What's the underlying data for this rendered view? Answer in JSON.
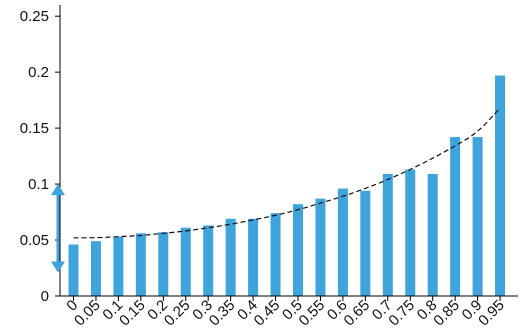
{
  "chart_data": {
    "type": "bar",
    "title": "",
    "xlabel": "",
    "ylabel": "",
    "categories": [
      "0",
      "0.05",
      "0.1",
      "0.15",
      "0.2",
      "0.25",
      "0.3",
      "0.35",
      "0.4",
      "0.45",
      "0.5",
      "0.55",
      "0.6",
      "0.65",
      "0.7",
      "0.75",
      "0.8",
      "0.85",
      "0.9",
      "0.95"
    ],
    "values": [
      0.046,
      0.049,
      0.053,
      0.056,
      0.057,
      0.061,
      0.063,
      0.069,
      0.069,
      0.074,
      0.082,
      0.087,
      0.096,
      0.094,
      0.109,
      0.113,
      0.109,
      0.142,
      0.142,
      0.197
    ],
    "ylim": [
      0,
      0.26
    ],
    "yticks": [
      0,
      0.05,
      0.1,
      0.15,
      0.2,
      0.25
    ],
    "ytick_labels": [
      "0",
      "0.05",
      "0.1",
      "0.15",
      "0.2",
      "0.25"
    ],
    "grid": false,
    "bar_color": "#3fa3dc",
    "trend_line": {
      "style": "dashed",
      "color": "#111111",
      "points": [
        [
          0,
          0.052
        ],
        [
          1,
          0.052
        ],
        [
          2,
          0.053
        ],
        [
          3,
          0.054
        ],
        [
          4,
          0.056
        ],
        [
          5,
          0.058
        ],
        [
          6,
          0.061
        ],
        [
          7,
          0.064
        ],
        [
          8,
          0.068
        ],
        [
          9,
          0.072
        ],
        [
          10,
          0.077
        ],
        [
          11,
          0.083
        ],
        [
          12,
          0.089
        ],
        [
          13,
          0.096
        ],
        [
          14,
          0.104
        ],
        [
          15,
          0.113
        ],
        [
          16,
          0.123
        ],
        [
          17,
          0.134
        ],
        [
          18,
          0.146
        ],
        [
          19,
          0.168
        ]
      ]
    },
    "annotation": {
      "type": "double-arrow",
      "color": "#3fa3dc",
      "from": 0.021,
      "to": 0.1
    }
  }
}
